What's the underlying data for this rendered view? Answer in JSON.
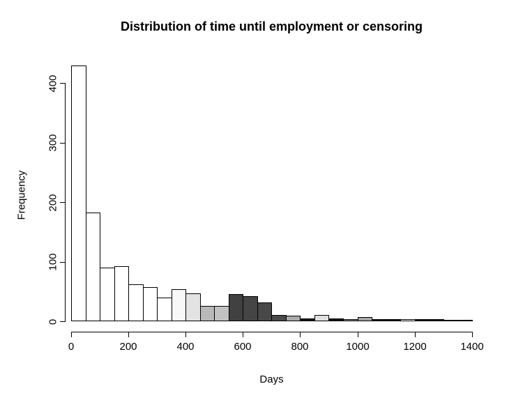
{
  "chart_data": {
    "type": "bar",
    "subtype": "histogram",
    "title": "Distribution of time until employment or censoring",
    "xlabel": "Days",
    "ylabel": "Frequency",
    "xlim": [
      0,
      1400
    ],
    "ylim": [
      0,
      430
    ],
    "x_ticks": [
      0,
      200,
      400,
      600,
      800,
      1000,
      1200,
      1400
    ],
    "y_ticks": [
      0,
      100,
      200,
      300,
      400
    ],
    "grid": "off",
    "legend": "none",
    "bin_width_days": 50,
    "bins": [
      {
        "start": 0,
        "end": 50,
        "count": 430,
        "fill": "#FFFFFF"
      },
      {
        "start": 50,
        "end": 100,
        "count": 183,
        "fill": "#FFFFFF"
      },
      {
        "start": 100,
        "end": 150,
        "count": 90,
        "fill": "#FFFFFF"
      },
      {
        "start": 150,
        "end": 200,
        "count": 92,
        "fill": "#FFFFFF"
      },
      {
        "start": 200,
        "end": 250,
        "count": 62,
        "fill": "#FFFFFF"
      },
      {
        "start": 250,
        "end": 300,
        "count": 57,
        "fill": "#FFFFFF"
      },
      {
        "start": 300,
        "end": 350,
        "count": 40,
        "fill": "#FFFFFF"
      },
      {
        "start": 350,
        "end": 400,
        "count": 54,
        "fill": "#F8F8F8"
      },
      {
        "start": 400,
        "end": 450,
        "count": 47,
        "fill": "#E3E3E3"
      },
      {
        "start": 450,
        "end": 500,
        "count": 26,
        "fill": "#B9B9B9"
      },
      {
        "start": 500,
        "end": 550,
        "count": 26,
        "fill": "#C2C2C2"
      },
      {
        "start": 550,
        "end": 600,
        "count": 46,
        "fill": "#414141"
      },
      {
        "start": 600,
        "end": 650,
        "count": 42,
        "fill": "#454545"
      },
      {
        "start": 650,
        "end": 700,
        "count": 32,
        "fill": "#484848"
      },
      {
        "start": 700,
        "end": 750,
        "count": 11,
        "fill": "#4A4A4A"
      },
      {
        "start": 750,
        "end": 800,
        "count": 9,
        "fill": "#ABABAB"
      },
      {
        "start": 800,
        "end": 850,
        "count": 5,
        "fill": "#1A1A1A"
      },
      {
        "start": 850,
        "end": 900,
        "count": 10,
        "fill": "#E0E0E0"
      },
      {
        "start": 900,
        "end": 950,
        "count": 5,
        "fill": "#181818"
      },
      {
        "start": 950,
        "end": 1000,
        "count": 4,
        "fill": "#8A8A8A"
      },
      {
        "start": 1000,
        "end": 1050,
        "count": 7,
        "fill": "#A6A6A6"
      },
      {
        "start": 1050,
        "end": 1100,
        "count": 4,
        "fill": "#121212"
      },
      {
        "start": 1100,
        "end": 1150,
        "count": 3,
        "fill": "#000000"
      },
      {
        "start": 1150,
        "end": 1200,
        "count": 3,
        "fill": "#FFFFFF"
      },
      {
        "start": 1200,
        "end": 1250,
        "count": 4,
        "fill": "#0A0A0A"
      },
      {
        "start": 1250,
        "end": 1300,
        "count": 4,
        "fill": "#0A0A0A"
      },
      {
        "start": 1300,
        "end": 1350,
        "count": 2,
        "fill": "#000000"
      },
      {
        "start": 1350,
        "end": 1400,
        "count": 1,
        "fill": "#000000"
      }
    ]
  },
  "colors": {
    "background": "#FFFFFF",
    "axis": "#000000",
    "bar_border": "#000000",
    "text": "#000000"
  }
}
